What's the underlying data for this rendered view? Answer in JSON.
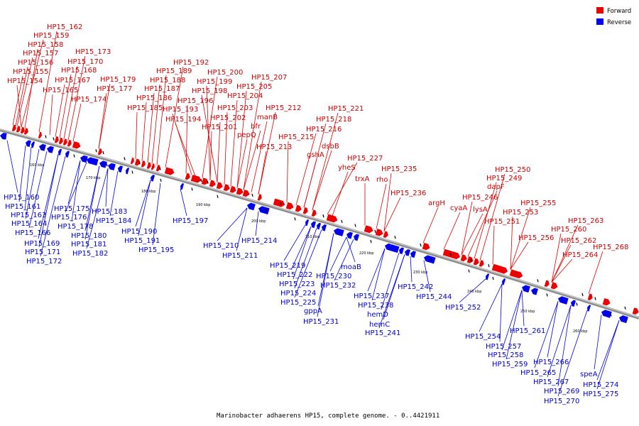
{
  "caption": "Marinobacter adhaerens HP15, complete genome. - 0..4421911",
  "legend": {
    "forward": {
      "label": "Forward",
      "color": "#ee0000"
    },
    "reverse": {
      "label": "Reverse",
      "color": "#0000ee"
    }
  },
  "kbp_marks": [
    "160 kbp",
    "170 kbp",
    "180 kbp",
    "190 kbp",
    "200 kbp",
    "210 kbp",
    "220 kbp",
    "230 kbp",
    "240 kbp",
    "250 kbp",
    "260 kbp"
  ],
  "forward_labels": [
    "HP15_162",
    "HP15_159",
    "HP15_158",
    "HP15_157",
    "HP15_156",
    "HP15_155",
    "HP15_154",
    "HP15_173",
    "HP15_170",
    "HP15_168",
    "HP15_167",
    "HP15_165",
    "HP15_174",
    "HP15_179",
    "HP15_177",
    "HP15_192",
    "HP15_189",
    "HP15_188",
    "HP15_187",
    "HP15_186",
    "HP15_185",
    "HP15_200",
    "HP15_199",
    "HP15_198",
    "HP15_196",
    "HP15_193",
    "HP15_194",
    "HP15_207",
    "HP15_205",
    "HP15_204",
    "HP15_203",
    "HP15_202",
    "HP15_201",
    "HP15_212",
    "manB",
    "bfr",
    "pepQ",
    "HP15_213",
    "HP15_221",
    "HP15_218",
    "HP15_216",
    "HP15_215",
    "dsbB",
    "gshA",
    "HP15_227",
    "yheS",
    "trxA",
    "rho",
    "HP15_235",
    "HP15_236",
    "argH",
    "cyaA",
    "HP15_250",
    "HP15_249",
    "dapF",
    "HP15_246",
    "lysA",
    "HP15_251",
    "HP15_255",
    "HP15_253",
    "HP15_256",
    "HP15_263",
    "HP15_260",
    "HP15_262",
    "HP15_264",
    "HP15_268"
  ],
  "reverse_labels": [
    "HP15_160",
    "HP15_161",
    "HP15_163",
    "HP15_164",
    "HP15_166",
    "HP15_169",
    "HP15_171",
    "HP15_172",
    "HP15_175",
    "HP15_176",
    "HP15_178",
    "HP15_180",
    "HP15_181",
    "HP15_182",
    "HP15_183",
    "HP15_184",
    "HP15_190",
    "HP15_191",
    "HP15_195",
    "HP15_197",
    "HP15_210",
    "HP15_211",
    "HP15_214",
    "HP15_219",
    "HP15_222",
    "HP15_223",
    "HP15_224",
    "HP15_225",
    "gppA",
    "HP15_231",
    "HP15_230",
    "HP15_232",
    "moaB",
    "HP15_237",
    "HP15_238",
    "hemD",
    "hemC",
    "HP15_241",
    "HP15_242",
    "HP15_244",
    "HP15_252",
    "HP15_254",
    "HP15_257",
    "HP15_258",
    "HP15_259",
    "HP15_261",
    "HP15_266",
    "HP15_265",
    "HP15_267",
    "HP15_269",
    "HP15_270",
    "speA",
    "HP15_274",
    "HP15_275"
  ]
}
